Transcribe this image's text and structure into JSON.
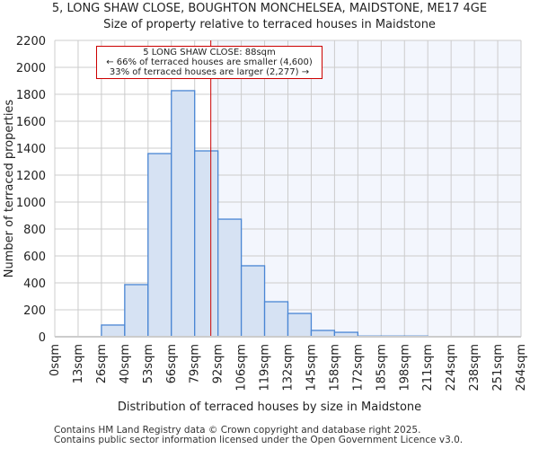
{
  "chart_data": {
    "type": "bar",
    "title": "5, LONG SHAW CLOSE, BOUGHTON MONCHELSEA, MAIDSTONE, ME17 4GE",
    "subtitle": "Size of property relative to terraced houses in Maidstone",
    "xlabel": "Distribution of terraced houses by size in Maidstone",
    "ylabel": "Number of terraced properties",
    "ylim": [
      0,
      2200
    ],
    "yticks": [
      0,
      200,
      400,
      600,
      800,
      1000,
      1200,
      1400,
      1600,
      1800,
      2000,
      2200
    ],
    "bin_edges": [
      0,
      13,
      26,
      40,
      53,
      66,
      79,
      92,
      106,
      119,
      132,
      145,
      158,
      172,
      185,
      198,
      211,
      224,
      238,
      251,
      264
    ],
    "xtick_labels": [
      "0sqm",
      "13sqm",
      "26sqm",
      "40sqm",
      "53sqm",
      "66sqm",
      "79sqm",
      "92sqm",
      "106sqm",
      "119sqm",
      "132sqm",
      "145sqm",
      "158sqm",
      "172sqm",
      "185sqm",
      "198sqm",
      "211sqm",
      "224sqm",
      "238sqm",
      "251sqm",
      "264sqm"
    ],
    "values": [
      0,
      0,
      87,
      387,
      1360,
      1827,
      1380,
      873,
      527,
      260,
      173,
      47,
      33,
      5,
      5,
      5,
      0,
      0,
      0,
      0
    ],
    "marker_value": 88,
    "bar_color": "#d6e2f3",
    "bar_edge": "#4a86d4",
    "marker_color": "#cc0000",
    "annotation": [
      "5 LONG SHAW CLOSE: 88sqm",
      "← 66% of terraced houses are smaller (4,600)",
      "33% of terraced houses are larger (2,277) →"
    ],
    "grid": true
  },
  "footer": [
    "Contains HM Land Registry data © Crown copyright and database right 2025.",
    "Contains public sector information licensed under the Open Government Licence v3.0."
  ]
}
